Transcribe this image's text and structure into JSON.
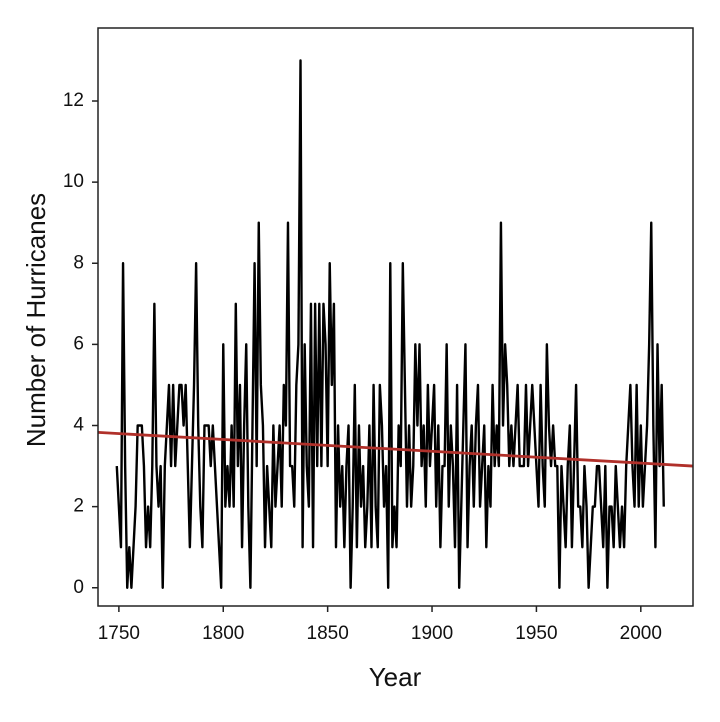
{
  "chart_data": {
    "type": "line",
    "xlabel": "Year",
    "ylabel": "Number of Hurricanes",
    "xlim": [
      1740,
      2025
    ],
    "ylim": [
      -0.45,
      13.8
    ],
    "xticks": [
      1750,
      1800,
      1850,
      1900,
      1950,
      2000
    ],
    "yticks": [
      0,
      2,
      4,
      6,
      8,
      10,
      12
    ],
    "grid": false,
    "series": [
      {
        "color": "#000000",
        "x": [
          1749,
          1750,
          1751,
          1752,
          1753,
          1754,
          1755,
          1756,
          1757,
          1758,
          1759,
          1760,
          1761,
          1762,
          1763,
          1764,
          1765,
          1766,
          1767,
          1768,
          1769,
          1770,
          1771,
          1772,
          1773,
          1774,
          1775,
          1776,
          1777,
          1778,
          1779,
          1780,
          1781,
          1782,
          1783,
          1784,
          1785,
          1786,
          1787,
          1788,
          1789,
          1790,
          1791,
          1792,
          1793,
          1794,
          1795,
          1796,
          1797,
          1798,
          1799,
          1800,
          1801,
          1802,
          1803,
          1804,
          1805,
          1806,
          1807,
          1808,
          1809,
          1810,
          1811,
          1812,
          1813,
          1814,
          1815,
          1816,
          1817,
          1818,
          1819,
          1820,
          1821,
          1822,
          1823,
          1824,
          1825,
          1826,
          1827,
          1828,
          1829,
          1830,
          1831,
          1832,
          1833,
          1834,
          1835,
          1836,
          1837,
          1838,
          1839,
          1840,
          1841,
          1842,
          1843,
          1844,
          1845,
          1846,
          1847,
          1848,
          1849,
          1850,
          1851,
          1852,
          1853,
          1854,
          1855,
          1856,
          1857,
          1858,
          1859,
          1860,
          1861,
          1862,
          1863,
          1864,
          1865,
          1866,
          1867,
          1868,
          1869,
          1870,
          1871,
          1872,
          1873,
          1874,
          1875,
          1876,
          1877,
          1878,
          1879,
          1880,
          1881,
          1882,
          1883,
          1884,
          1885,
          1886,
          1887,
          1888,
          1889,
          1890,
          1891,
          1892,
          1893,
          1894,
          1895,
          1896,
          1897,
          1898,
          1899,
          1900,
          1901,
          1902,
          1903,
          1904,
          1905,
          1906,
          1907,
          1908,
          1909,
          1910,
          1911,
          1912,
          1913,
          1914,
          1915,
          1916,
          1917,
          1918,
          1919,
          1920,
          1921,
          1922,
          1923,
          1924,
          1925,
          1926,
          1927,
          1928,
          1929,
          1930,
          1931,
          1932,
          1933,
          1934,
          1935,
          1936,
          1937,
          1938,
          1939,
          1940,
          1941,
          1942,
          1943,
          1944,
          1945,
          1946,
          1947,
          1948,
          1949,
          1950,
          1951,
          1952,
          1953,
          1954,
          1955,
          1956,
          1957,
          1958,
          1959,
          1960,
          1961,
          1962,
          1963,
          1964,
          1965,
          1966,
          1967,
          1968,
          1969,
          1970,
          1971,
          1972,
          1973,
          1974,
          1975,
          1976,
          1977,
          1978,
          1979,
          1980,
          1981,
          1982,
          1983,
          1984,
          1985,
          1986,
          1987,
          1988,
          1989,
          1990,
          1991,
          1992,
          1993,
          1994,
          1995,
          1996,
          1997,
          1998,
          1999,
          2000,
          2001,
          2002,
          2003,
          2004,
          2005,
          2006,
          2007,
          2008,
          2009,
          2010,
          2011
        ],
        "values": [
          3,
          2,
          1,
          8,
          3,
          0,
          1,
          0,
          1,
          2,
          4,
          4,
          4,
          3,
          1,
          2,
          1,
          3,
          7,
          3,
          2,
          3,
          0,
          3,
          4,
          5,
          3,
          5,
          3,
          4,
          5,
          5,
          4,
          5,
          3,
          1,
          3,
          5,
          8,
          4,
          2,
          1,
          4,
          4,
          4,
          3,
          4,
          3,
          2,
          1,
          0,
          6,
          2,
          3,
          2,
          4,
          2,
          7,
          3,
          5,
          1,
          4,
          6,
          2,
          0,
          4,
          8,
          3,
          9,
          5,
          4,
          1,
          3,
          2,
          1,
          4,
          2,
          3,
          4,
          2,
          5,
          4,
          9,
          3,
          3,
          2,
          5,
          6,
          13,
          1,
          6,
          3,
          2,
          7,
          1,
          7,
          3,
          7,
          3,
          7,
          6,
          3,
          8,
          5,
          7,
          1,
          4,
          2,
          3,
          1,
          3,
          4,
          0,
          2,
          5,
          1,
          4,
          2,
          3,
          1,
          2,
          4,
          1,
          5,
          2,
          1,
          5,
          4,
          2,
          3,
          0,
          8,
          1,
          2,
          1,
          4,
          3,
          8,
          5,
          2,
          4,
          2,
          3,
          6,
          4,
          6,
          3,
          4,
          2,
          5,
          3,
          4,
          5,
          2,
          4,
          1,
          3,
          3,
          6,
          2,
          4,
          3,
          1,
          5,
          0,
          2,
          4,
          6,
          1,
          3,
          4,
          2,
          4,
          5,
          2,
          3,
          4,
          1,
          3,
          2,
          5,
          3,
          4,
          3,
          9,
          4,
          6,
          5,
          3,
          4,
          3,
          4,
          5,
          3,
          3,
          3,
          5,
          3,
          4,
          5,
          4,
          3,
          2,
          5,
          3,
          2,
          6,
          4,
          3,
          4,
          3,
          3,
          0,
          3,
          2,
          1,
          3,
          4,
          1,
          3,
          5,
          2,
          2,
          1,
          3,
          2,
          0,
          1,
          2,
          2,
          3,
          3,
          2,
          1,
          3,
          0,
          2,
          2,
          1,
          3,
          2,
          1,
          2,
          1,
          3,
          4,
          5,
          3,
          2,
          5,
          2,
          4,
          2,
          3,
          4,
          6,
          9,
          4,
          1,
          6,
          3,
          5,
          2
        ]
      },
      {
        "color": "#b0302a",
        "x": [
          1740,
          2025
        ],
        "values": [
          3.83,
          3.0
        ]
      }
    ]
  }
}
